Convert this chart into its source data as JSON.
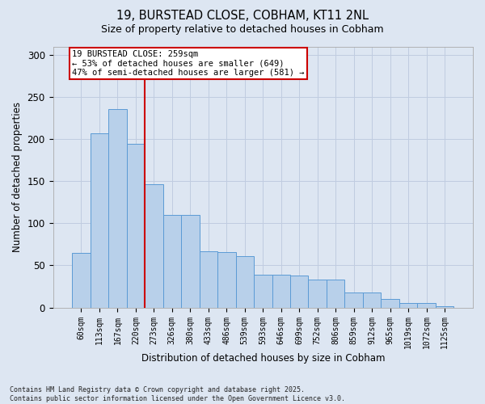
{
  "title_line1": "19, BURSTEAD CLOSE, COBHAM, KT11 2NL",
  "title_line2": "Size of property relative to detached houses in Cobham",
  "xlabel": "Distribution of detached houses by size in Cobham",
  "ylabel": "Number of detached properties",
  "categories": [
    "60sqm",
    "113sqm",
    "167sqm",
    "220sqm",
    "273sqm",
    "326sqm",
    "380sqm",
    "433sqm",
    "486sqm",
    "539sqm",
    "593sqm",
    "646sqm",
    "699sqm",
    "752sqm",
    "806sqm",
    "859sqm",
    "912sqm",
    "965sqm",
    "1019sqm",
    "1072sqm",
    "1125sqm"
  ],
  "values": [
    65,
    207,
    236,
    194,
    146,
    110,
    110,
    67,
    66,
    61,
    39,
    39,
    38,
    33,
    33,
    18,
    18,
    10,
    5,
    5,
    2
  ],
  "bar_color": "#b8d0ea",
  "bar_edge_color": "#5b9bd5",
  "grid_color": "#c0cce0",
  "background_color": "#dde6f2",
  "vline_x_index": 3,
  "vline_color": "#cc0000",
  "annotation_text": "19 BURSTEAD CLOSE: 259sqm\n← 53% of detached houses are smaller (649)\n47% of semi-detached houses are larger (581) →",
  "annotation_box_facecolor": "#ffffff",
  "annotation_box_edgecolor": "#cc0000",
  "ylim": [
    0,
    310
  ],
  "yticks": [
    0,
    50,
    100,
    150,
    200,
    250,
    300
  ],
  "footer": "Contains HM Land Registry data © Crown copyright and database right 2025.\nContains public sector information licensed under the Open Government Licence v3.0."
}
